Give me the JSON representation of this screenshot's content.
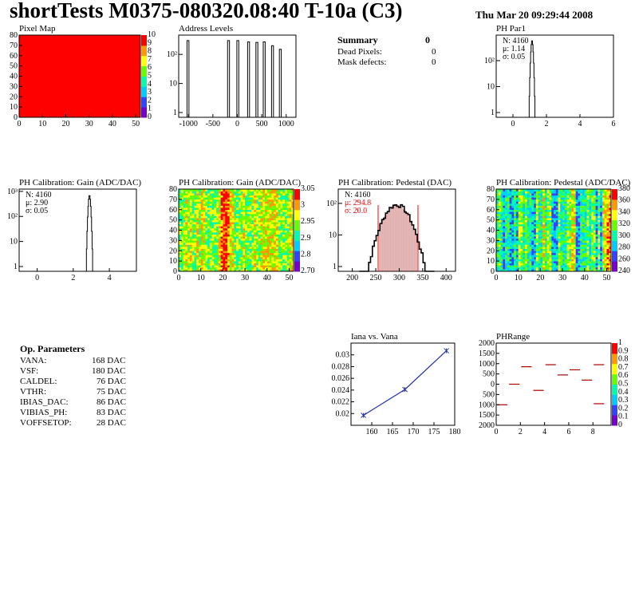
{
  "title": "shortTests M0375-080320.08:40 T-10a (C3)",
  "date": "Thu Mar 20 09:29:44 2008",
  "summary": {
    "title": "Summary",
    "title_value": "0",
    "rows": [
      {
        "label": "Dead Pixels:",
        "value": "0"
      },
      {
        "label": "Mask defects:",
        "value": "0"
      }
    ]
  },
  "op_params": {
    "title": "Op. Parameters",
    "rows": [
      {
        "label": "VANA:",
        "value": "168 DAC"
      },
      {
        "label": "VSF:",
        "value": "180 DAC"
      },
      {
        "label": "CALDEL:",
        "value": "76 DAC"
      },
      {
        "label": "VTHR:",
        "value": "75 DAC"
      },
      {
        "label": "IBIAS_DAC:",
        "value": "86 DAC"
      },
      {
        "label": "VIBIAS_PH:",
        "value": "83 DAC"
      },
      {
        "label": "VOFFSETOP:",
        "value": "28 DAC"
      }
    ]
  },
  "colors": {
    "heat": [
      "#7700cc",
      "#3344ff",
      "#00ccff",
      "#00ffaa",
      "#66ff00",
      "#ffff00",
      "#ff9900",
      "#ff0000"
    ],
    "red": "#ff0000",
    "blue": "#2233aa",
    "darkred": "#aa0000"
  },
  "chart_data": [
    {
      "id": "pixel-map",
      "type": "heatmap",
      "title": "Pixel Map",
      "xlim": [
        0,
        52
      ],
      "ylim": [
        0,
        80
      ],
      "xticks": [
        "0",
        "10",
        "20",
        "30",
        "40",
        "50"
      ],
      "yticks": [
        "0",
        "10",
        "20",
        "30",
        "40",
        "50",
        "60",
        "70",
        "80"
      ],
      "fill": "uniform red (all pixels at maximum)",
      "zticks": [
        "0",
        "1",
        "2",
        "3",
        "4",
        "5",
        "6",
        "7",
        "8",
        "9",
        "10"
      ]
    },
    {
      "id": "address-levels",
      "type": "bar",
      "title": "Address Levels",
      "log_y": true,
      "xlim": [
        -1200,
        1200
      ],
      "xticks": [
        "-1000",
        "-500",
        "0",
        "500",
        "1000"
      ],
      "yticks": [
        "1",
        "10",
        "10²"
      ],
      "peaks": [
        {
          "x": -1010,
          "y": 300
        },
        {
          "x": -180,
          "y": 300
        },
        {
          "x": 10,
          "y": 300
        },
        {
          "x": 230,
          "y": 270
        },
        {
          "x": 400,
          "y": 260
        },
        {
          "x": 550,
          "y": 270
        },
        {
          "x": 720,
          "y": 200
        },
        {
          "x": 880,
          "y": 150
        }
      ]
    },
    {
      "id": "ph-par1",
      "type": "bar",
      "title": "PH Par1",
      "log_y": true,
      "xlim": [
        -1,
        6
      ],
      "xticks": [
        "0",
        "2",
        "4",
        "6"
      ],
      "yticks": [
        "1",
        "10",
        "10²"
      ],
      "stats": [
        "N: 4160",
        "μ: 1.14",
        "σ: 0.05"
      ],
      "peak": {
        "mean": 1.14,
        "sigma": 0.05,
        "max": 600
      }
    },
    {
      "id": "gain-1d",
      "type": "bar",
      "title": "PH Calibration: Gain (ADC/DAC)",
      "log_y": true,
      "xlim": [
        -1,
        5.5
      ],
      "xticks": [
        "0",
        "2",
        "4"
      ],
      "yticks": [
        "1",
        "10",
        "10²",
        "10³"
      ],
      "stats": [
        "N: 4160",
        "μ: 2.90",
        "σ: 0.05"
      ],
      "peak": {
        "mean": 2.9,
        "sigma": 0.05,
        "max": 700
      }
    },
    {
      "id": "gain-map",
      "type": "heatmap",
      "title": "PH Calibration: Gain (ADC/DAC)",
      "xlim": [
        0,
        52
      ],
      "ylim": [
        0,
        80
      ],
      "xticks": [
        "0",
        "10",
        "20",
        "30",
        "40",
        "50"
      ],
      "yticks": [
        "0",
        "10",
        "20",
        "30",
        "40",
        "50",
        "60",
        "70",
        "80"
      ],
      "zticks": [
        "2.70",
        "2.8",
        "2.9",
        "2.95",
        "3",
        "3.05"
      ]
    },
    {
      "id": "pedestal-1d",
      "type": "bar",
      "title": "PH Calibration: Pedestal (DAC)",
      "log_y": true,
      "xlim": [
        170,
        420
      ],
      "xticks": [
        "200",
        "250",
        "300",
        "350",
        "400"
      ],
      "yticks": [
        "1",
        "10",
        "10²"
      ],
      "stats": [
        "N: 4160",
        "μ: 294.8",
        "σ: 20.0"
      ],
      "peak": {
        "mean": 294.8,
        "sigma": 20.0,
        "max": 90
      },
      "cut_lines": [
        255,
        340
      ]
    },
    {
      "id": "pedestal-map",
      "type": "heatmap",
      "title": "PH Calibration: Pedestal (ADC/DAC)",
      "xlim": [
        0,
        52
      ],
      "ylim": [
        0,
        80
      ],
      "xticks": [
        "0",
        "10",
        "20",
        "30",
        "40",
        "50"
      ],
      "yticks": [
        "0",
        "10",
        "20",
        "30",
        "40",
        "50",
        "60",
        "70",
        "80"
      ],
      "zticks": [
        "240",
        "260",
        "280",
        "300",
        "320",
        "340",
        "360",
        "380"
      ]
    },
    {
      "id": "iana-vana",
      "type": "line",
      "title": "Iana vs. Vana",
      "xlim": [
        155,
        180
      ],
      "ylim": [
        0.018,
        0.032
      ],
      "xticks": [
        "160",
        "165",
        "170",
        "175",
        "180"
      ],
      "yticks": [
        "0.02",
        "0.022",
        "0.024",
        "0.026",
        "0.028",
        "0.03"
      ],
      "x": [
        158,
        168,
        178
      ],
      "y": [
        0.0197,
        0.0241,
        0.0307
      ]
    },
    {
      "id": "ph-range",
      "type": "scatter",
      "title": "PHRange",
      "xlim": [
        0,
        9.5
      ],
      "ylim": [
        -2000,
        2000
      ],
      "xticks": [
        "0",
        "2",
        "4",
        "6",
        "8"
      ],
      "yticks": [
        "2000",
        "1500",
        "1000",
        "500",
        "0",
        "500",
        "1000",
        "1500",
        "2000"
      ],
      "zticks": [
        "0",
        "0.1",
        "0.2",
        "0.3",
        "0.4",
        "0.5",
        "0.6",
        "0.7",
        "0.8",
        "0.9",
        "1"
      ],
      "segments": [
        {
          "x": 0.5,
          "y": -1000
        },
        {
          "x": 1.5,
          "y": 0
        },
        {
          "x": 2.5,
          "y": 850
        },
        {
          "x": 3.5,
          "y": -300
        },
        {
          "x": 4.5,
          "y": 950
        },
        {
          "x": 5.5,
          "y": 450
        },
        {
          "x": 6.5,
          "y": 700
        },
        {
          "x": 7.5,
          "y": 200
        },
        {
          "x": 8.5,
          "y": 950
        },
        {
          "x": 8.5,
          "y": -950
        }
      ]
    }
  ]
}
